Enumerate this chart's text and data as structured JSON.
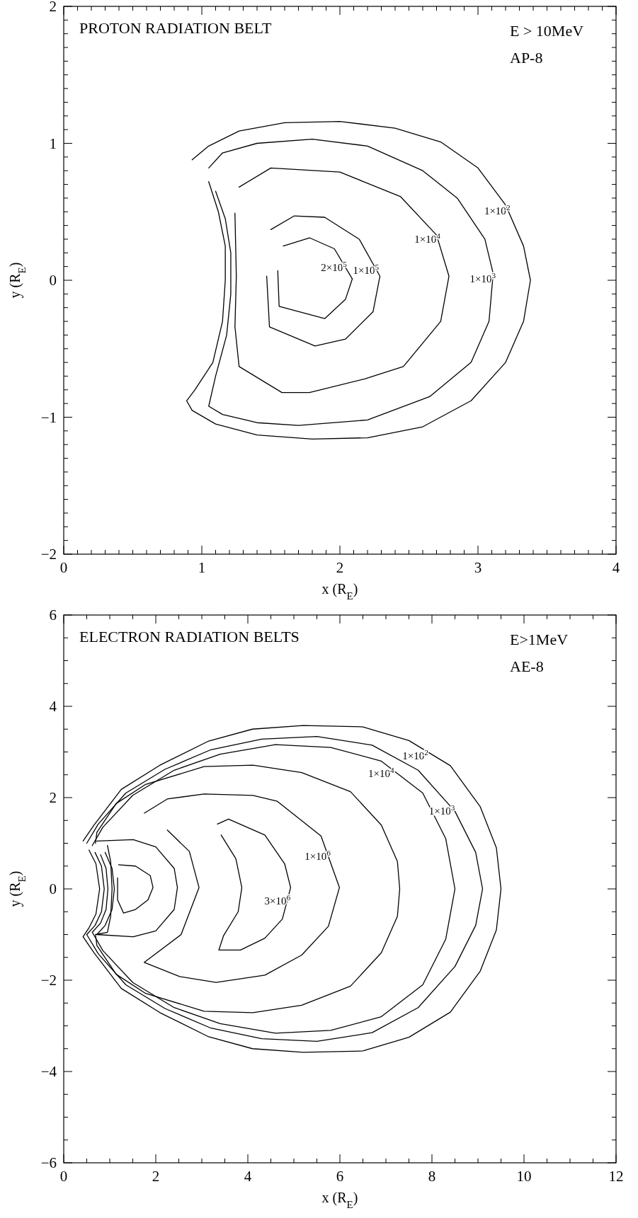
{
  "chart_data": [
    {
      "type": "line",
      "title": "PROTON RADIATION BELT",
      "annotations": [
        "E > 10MeV",
        "AP-8"
      ],
      "xlabel": "x (R$_{E}$)",
      "ylabel": "y (R$_{E}$)",
      "xlim": [
        0,
        4
      ],
      "ylim": [
        -2,
        2
      ],
      "line_style": "solid",
      "legend": false,
      "grid": false,
      "xticks": [
        0,
        {
          "value": 0.1,
          "label": null
        },
        {
          "value": 0.2,
          "label": null
        },
        {
          "value": 0.3,
          "label": null
        },
        {
          "value": 0.4,
          "label": null
        },
        {
          "value": 0.5,
          "label": null
        },
        {
          "value": 0.6,
          "label": null
        },
        {
          "value": 0.7,
          "label": null
        },
        {
          "value": 0.8,
          "label": null
        },
        {
          "value": 0.9,
          "label": null
        },
        1,
        {
          "value": 1.1,
          "label": null
        },
        {
          "value": 1.2,
          "label": null
        },
        {
          "value": 1.3,
          "label": null
        },
        {
          "value": 1.4,
          "label": null
        },
        {
          "value": 1.5,
          "label": null
        },
        {
          "value": 1.6,
          "label": null
        },
        {
          "value": 1.7,
          "label": null
        },
        {
          "value": 1.8,
          "label": null
        },
        {
          "value": 1.9,
          "label": null
        },
        2,
        {
          "value": 2.1,
          "label": null
        },
        {
          "value": 2.2,
          "label": null
        },
        {
          "value": 2.3,
          "label": null
        },
        {
          "value": 2.4,
          "label": null
        },
        {
          "value": 2.5,
          "label": null
        },
        {
          "value": 2.6,
          "label": null
        },
        {
          "value": 2.7,
          "label": null
        },
        {
          "value": 2.8,
          "label": null
        },
        {
          "value": 2.9,
          "label": null
        },
        3,
        {
          "value": 3.1,
          "label": null
        },
        {
          "value": 3.2,
          "label": null
        },
        {
          "value": 3.3,
          "label": null
        },
        {
          "value": 3.4,
          "label": null
        },
        {
          "value": 3.5,
          "label": null
        },
        {
          "value": 3.6,
          "label": null
        },
        {
          "value": 3.7,
          "label": null
        },
        {
          "value": 3.8,
          "label": null
        },
        {
          "value": 3.9,
          "label": null
        },
        4
      ],
      "yticks": [
        -2,
        {
          "value": -1.9,
          "label": null
        },
        {
          "value": -1.8,
          "label": null
        },
        {
          "value": -1.7,
          "label": null
        },
        {
          "value": -1.6,
          "label": null
        },
        {
          "value": -1.5,
          "label": null
        },
        {
          "value": -1.4,
          "label": null
        },
        {
          "value": -1.3,
          "label": null
        },
        {
          "value": -1.2,
          "label": null
        },
        {
          "value": -1.1,
          "label": null
        },
        -1,
        {
          "value": -0.9,
          "label": null
        },
        {
          "value": -0.8,
          "label": null
        },
        {
          "value": -0.7,
          "label": null
        },
        {
          "value": -0.6,
          "label": null
        },
        {
          "value": -0.5,
          "label": null
        },
        {
          "value": -0.4,
          "label": null
        },
        {
          "value": -0.3,
          "label": null
        },
        {
          "value": -0.2,
          "label": null
        },
        {
          "value": -0.1,
          "label": null
        },
        0,
        {
          "value": 0.1,
          "label": null
        },
        {
          "value": 0.2,
          "label": null
        },
        {
          "value": 0.3,
          "label": null
        },
        {
          "value": 0.4,
          "label": null
        },
        {
          "value": 0.5,
          "label": null
        },
        {
          "value": 0.6,
          "label": null
        },
        {
          "value": 0.7,
          "label": null
        },
        {
          "value": 0.8,
          "label": null
        },
        {
          "value": 0.9,
          "label": null
        },
        1,
        {
          "value": 1.1,
          "label": null
        },
        {
          "value": 1.2,
          "label": null
        },
        {
          "value": 1.3,
          "label": null
        },
        {
          "value": 1.4,
          "label": null
        },
        {
          "value": 1.5,
          "label": null
        },
        {
          "value": 1.6,
          "label": null
        },
        {
          "value": 1.7,
          "label": null
        },
        {
          "value": 1.8,
          "label": null
        },
        {
          "value": 1.9,
          "label": null
        },
        2
      ],
      "series": [
        {
          "name": "1×10$^{2}$",
          "color": "#000000",
          "x": [
            0.93,
            1.05,
            1.27,
            1.6,
            2.0,
            2.4,
            2.73,
            3.0,
            3.2,
            3.33,
            3.38,
            3.33,
            3.2,
            2.95,
            2.6,
            2.2,
            1.8,
            1.4,
            1.1,
            0.93,
            0.89,
            0.95,
            1.08,
            1.15,
            1.17,
            1.17,
            1.12,
            1.05
          ],
          "values": [
            0.88,
            0.98,
            1.09,
            1.15,
            1.16,
            1.11,
            1.01,
            0.82,
            0.55,
            0.25,
            0,
            -0.3,
            -0.6,
            -0.88,
            -1.07,
            -1.15,
            -1.16,
            -1.13,
            -1.05,
            -0.95,
            -0.88,
            -0.8,
            -0.6,
            -0.3,
            0,
            0.25,
            0.5,
            0.72
          ]
        },
        {
          "name": "1×10$^{3}$",
          "color": "#000000",
          "x": [
            1.05,
            1.15,
            1.4,
            1.8,
            2.2,
            2.6,
            2.85,
            3.05,
            3.11,
            3.08,
            2.95,
            2.65,
            2.2,
            1.7,
            1.4,
            1.15,
            1.05,
            1.1,
            1.18,
            1.21,
            1.21,
            1.17,
            1.1
          ],
          "values": [
            0.82,
            0.93,
            1.0,
            1.03,
            0.98,
            0.8,
            0.6,
            0.3,
            0.05,
            -0.3,
            -0.6,
            -0.85,
            -1.02,
            -1.06,
            -1.04,
            -0.98,
            -0.92,
            -0.7,
            -0.4,
            -0.1,
            0.2,
            0.45,
            0.65
          ]
        },
        {
          "name": "1×10$^{4}$",
          "color": "#000000",
          "x": [
            1.27,
            1.5,
            2.0,
            2.44,
            2.7,
            2.79,
            2.73,
            2.46,
            2.18,
            1.78,
            1.58,
            1.27,
            1.24,
            1.25,
            1.24
          ],
          "values": [
            0.68,
            0.82,
            0.79,
            0.61,
            0.33,
            0.03,
            -0.3,
            -0.63,
            -0.72,
            -0.82,
            -0.82,
            -0.63,
            -0.34,
            0.03,
            0.49
          ]
        },
        {
          "name": "1×10$^{5}$",
          "color": "#000000",
          "x": [
            1.5,
            1.67,
            1.89,
            2.14,
            2.29,
            2.24,
            2.04,
            1.82,
            1.49,
            1.47
          ],
          "values": [
            0.37,
            0.47,
            0.46,
            0.3,
            0.03,
            -0.23,
            -0.43,
            -0.48,
            -0.34,
            0.03
          ]
        },
        {
          "name": "2×10$^{5}$",
          "color": "#000000",
          "x": [
            1.59,
            1.78,
            1.96,
            2.09,
            2.04,
            1.89,
            1.56,
            1.55
          ],
          "values": [
            0.25,
            0.31,
            0.23,
            0.01,
            -0.14,
            -0.28,
            -0.19,
            0.07
          ]
        }
      ]
    },
    {
      "type": "line",
      "title": "ELECTRON RADIATION BELTS",
      "annotations": [
        "E>1MeV",
        "AE-8"
      ],
      "xlabel": "x (R$_{E}$)",
      "ylabel": "y (R$_{E}$)",
      "xlim": [
        0,
        12
      ],
      "ylim": [
        -6,
        6
      ],
      "line_style": "solid",
      "legend": false,
      "grid": false,
      "xticks": [
        0,
        {
          "value": 0.5,
          "label": null
        },
        {
          "value": 1,
          "label": null
        },
        {
          "value": 1.5,
          "label": null
        },
        2,
        {
          "value": 2.5,
          "label": null
        },
        {
          "value": 3,
          "label": null
        },
        {
          "value": 3.5,
          "label": null
        },
        4,
        {
          "value": 4.5,
          "label": null
        },
        {
          "value": 5,
          "label": null
        },
        {
          "value": 5.5,
          "label": null
        },
        6,
        {
          "value": 6.5,
          "label": null
        },
        {
          "value": 7,
          "label": null
        },
        {
          "value": 7.5,
          "label": null
        },
        8,
        {
          "value": 8.5,
          "label": null
        },
        {
          "value": 9,
          "label": null
        },
        {
          "value": 9.5,
          "label": null
        },
        10,
        {
          "value": 10.5,
          "label": null
        },
        {
          "value": 11,
          "label": null
        },
        {
          "value": 11.5,
          "label": null
        },
        12
      ],
      "yticks": [
        -6,
        {
          "value": -5.5,
          "label": null
        },
        {
          "value": -5,
          "label": null
        },
        {
          "value": -4.5,
          "label": null
        },
        -4,
        {
          "value": -3.5,
          "label": null
        },
        {
          "value": -3,
          "label": null
        },
        {
          "value": -2.5,
          "label": null
        },
        -2,
        {
          "value": -1.5,
          "label": null
        },
        {
          "value": -1,
          "label": null
        },
        {
          "value": -0.5,
          "label": null
        },
        0,
        {
          "value": 0.5,
          "label": null
        },
        {
          "value": 1,
          "label": null
        },
        {
          "value": 1.5,
          "label": null
        },
        2,
        {
          "value": 2.5,
          "label": null
        },
        {
          "value": 3,
          "label": null
        },
        {
          "value": 3.5,
          "label": null
        },
        4,
        {
          "value": 4.5,
          "label": null
        },
        {
          "value": 5,
          "label": null
        },
        {
          "value": 5.5,
          "label": null
        },
        6
      ],
      "series": [
        {
          "name": "1×10$^{2}$",
          "color": "#000000",
          "x": [
            0.42,
            0.66,
            1.25,
            2.09,
            3.15,
            4.1,
            5.2,
            6.5,
            7.5,
            8.4,
            9.05,
            9.4,
            9.5,
            9.4,
            9.05,
            8.4,
            7.5,
            6.5,
            5.2,
            4.1,
            3.15,
            2.09,
            1.25,
            0.66,
            0.42,
            0.55,
            0.7,
            0.78,
            0.7,
            0.55
          ],
          "values": [
            1.05,
            1.4,
            2.18,
            2.71,
            3.24,
            3.5,
            3.58,
            3.55,
            3.25,
            2.7,
            1.8,
            0.9,
            0,
            -0.9,
            -1.8,
            -2.7,
            -3.25,
            -3.55,
            -3.58,
            -3.5,
            -3.24,
            -2.71,
            -2.18,
            -1.4,
            -1.05,
            -0.85,
            -0.55,
            0,
            0.55,
            0.85
          ]
        },
        {
          "name": "1×10$^{3}$",
          "color": "#000000",
          "x": [
            0.5,
            0.75,
            1.35,
            2.2,
            3.2,
            4.3,
            5.5,
            6.7,
            7.7,
            8.5,
            8.95,
            9.1,
            8.95,
            8.5,
            7.7,
            6.7,
            5.5,
            4.3,
            3.2,
            2.2,
            1.35,
            0.75,
            0.5,
            0.68,
            0.82,
            0.88,
            0.82,
            0.68
          ],
          "values": [
            1.0,
            1.42,
            2.1,
            2.62,
            3.05,
            3.28,
            3.34,
            3.15,
            2.6,
            1.7,
            0.8,
            0,
            -0.8,
            -1.7,
            -2.6,
            -3.15,
            -3.34,
            -3.28,
            -3.05,
            -2.62,
            -2.1,
            -1.42,
            -1.0,
            -0.8,
            -0.5,
            0,
            0.5,
            0.8
          ]
        },
        {
          "name": "1×10$^{4}$",
          "color": "#000000",
          "x": [
            0.62,
            0.85,
            1.5,
            2.4,
            3.4,
            4.6,
            5.8,
            6.9,
            7.8,
            8.3,
            8.5,
            8.3,
            7.8,
            6.9,
            5.8,
            4.6,
            3.4,
            2.4,
            1.5,
            0.85,
            0.62,
            0.8,
            0.92,
            0.96,
            0.92,
            0.8
          ],
          "values": [
            0.95,
            1.35,
            2.05,
            2.6,
            2.95,
            3.16,
            3.1,
            2.8,
            2.1,
            1.1,
            0,
            -1.1,
            -2.1,
            -2.8,
            -3.1,
            -3.16,
            -2.95,
            -2.6,
            -2.05,
            -1.35,
            -0.95,
            -0.75,
            -0.45,
            0,
            0.45,
            0.75
          ]
        },
        {
          "color": "#000000",
          "x": [
            0.69,
            0.72,
            1.14,
            1.78,
            3.05,
            4.11,
            5.17,
            6.23,
            6.9,
            7.25,
            7.3,
            7.25,
            6.9,
            6.23,
            5.17,
            4.11,
            3.05,
            1.78,
            1.14,
            0.72,
            0.69,
            0.95,
            1.02,
            1.05,
            1.02,
            0.95
          ],
          "values": [
            1.0,
            1.24,
            1.87,
            2.29,
            2.68,
            2.71,
            2.55,
            2.13,
            1.4,
            0.6,
            0,
            -0.6,
            -1.4,
            -2.13,
            -2.55,
            -2.71,
            -2.68,
            -2.29,
            -1.87,
            -1.24,
            -1.0,
            -0.95,
            -0.6,
            0,
            0.6,
            0.95
          ]
        },
        {
          "color": "#000000",
          "x": [
            0.72,
            1.51,
            2.0,
            2.4,
            2.47,
            2.4,
            2.0,
            1.51,
            0.72,
            0.9,
            1.05,
            1.1,
            1.05,
            0.9
          ],
          "values": [
            1.05,
            1.08,
            0.92,
            0.45,
            0.03,
            -0.45,
            -0.92,
            -1.05,
            -1.0,
            -0.8,
            -0.45,
            0,
            0.45,
            0.8
          ]
        },
        {
          "color": "#000000",
          "x": [
            1.19,
            1.56,
            1.88,
            1.94,
            1.83,
            1.56,
            1.3,
            1.17,
            1.17
          ],
          "values": [
            0.53,
            0.5,
            0.29,
            0.03,
            -0.24,
            -0.45,
            -0.53,
            -0.24,
            0.24
          ]
        },
        {
          "name": "1×10$^{6}$",
          "color": "#000000",
          "x": [
            1.75,
            2.25,
            3.05,
            4.11,
            4.64,
            5.59,
            5.99,
            5.75,
            5.17,
            4.37,
            3.31,
            2.52,
            1.75,
            2.55,
            2.94,
            2.73,
            2.25
          ],
          "values": [
            1.66,
            1.97,
            2.08,
            2.05,
            1.92,
            1.16,
            0.03,
            -0.82,
            -1.45,
            -1.89,
            -2.05,
            -1.92,
            -1.61,
            -1.0,
            0.03,
            0.82,
            1.29
          ]
        },
        {
          "name": "3×10$^{6}$",
          "color": "#000000",
          "x": [
            3.34,
            3.58,
            4.37,
            4.8,
            4.93,
            4.75,
            4.37,
            3.84,
            3.37,
            3.47,
            3.79,
            3.87,
            3.74,
            3.42
          ],
          "values": [
            1.42,
            1.53,
            1.18,
            0.55,
            0.03,
            -0.66,
            -1.08,
            -1.34,
            -1.34,
            -1.03,
            -0.5,
            0.03,
            0.66,
            1.18
          ]
        }
      ]
    }
  ]
}
